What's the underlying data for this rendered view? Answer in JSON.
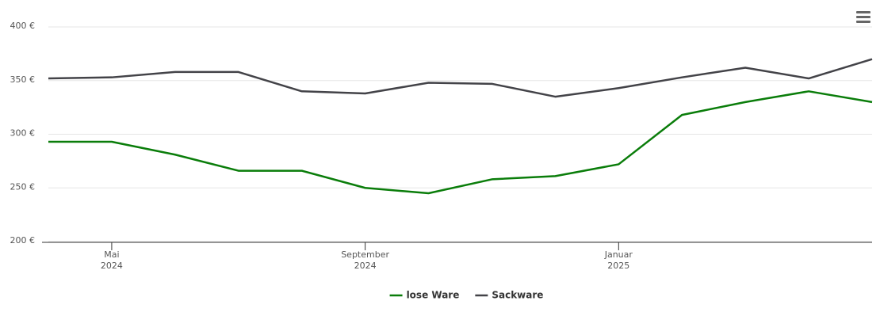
{
  "chart_data": {
    "type": "line",
    "x": [
      "2024-04",
      "2024-05",
      "2024-06",
      "2024-07",
      "2024-08",
      "2024-09",
      "2024-10",
      "2024-11",
      "2024-12",
      "2025-01",
      "2025-02",
      "2025-03",
      "2025-04",
      "2025-05"
    ],
    "xlim": [
      "2024-04",
      "2025-05"
    ],
    "xticks": [
      {
        "value": "2024-05",
        "label": [
          "Mai",
          "2024"
        ]
      },
      {
        "value": "2024-09",
        "label": [
          "September",
          "2024"
        ]
      },
      {
        "value": "2025-01",
        "label": [
          "Januar",
          "2025"
        ]
      }
    ],
    "ylim": [
      200,
      400
    ],
    "yticks": [
      {
        "value": 200,
        "label": "200 €"
      },
      {
        "value": 250,
        "label": "250 €"
      },
      {
        "value": 300,
        "label": "300 €"
      },
      {
        "value": 350,
        "label": "350 €"
      },
      {
        "value": 400,
        "label": "400 €"
      }
    ],
    "grid": true,
    "legend": "bottom",
    "series": [
      {
        "name": "lose Ware",
        "color": "#0a7d0a",
        "values": [
          293,
          293,
          281,
          266,
          266,
          250,
          245,
          258,
          261,
          272,
          318,
          330,
          340,
          330
        ]
      },
      {
        "name": "Sackware",
        "color": "#434348",
        "values": [
          352,
          353,
          358,
          358,
          340,
          338,
          348,
          347,
          335,
          343,
          353,
          362,
          352,
          370
        ]
      }
    ]
  }
}
